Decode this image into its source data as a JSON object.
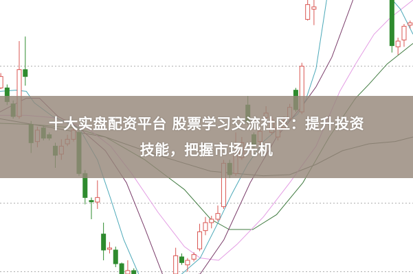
{
  "article": {
    "title_line_1": "十大实盘配资平台 股票学习交流社区：提升投资",
    "title_line_2": "技能，把握市场先机"
  },
  "chart_style": {
    "type": "candlestick",
    "up_color": "#d9534f",
    "down_color": "#2e8b2e",
    "ma_colors": [
      "#4aa8b8",
      "#7a3c6a",
      "#e39be3",
      "#3f7a3f",
      "#4b5a4b"
    ],
    "grid": "dotted horizontal",
    "banner_color": "#968779"
  }
}
